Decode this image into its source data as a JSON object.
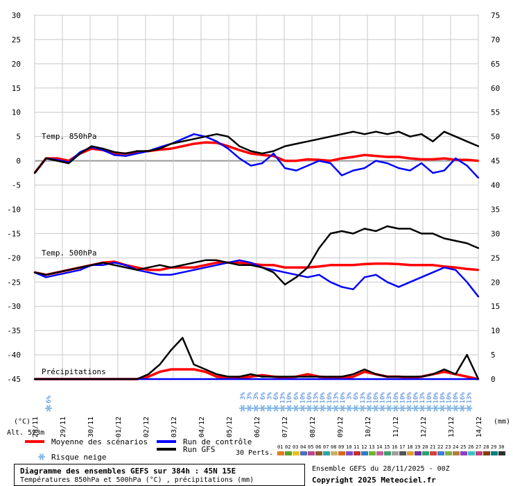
{
  "chart_data": {
    "type": "line",
    "title": "Diagramme des ensembles GEFS sur 384h : 45N 15E",
    "subtitle": "Températures 850hPa et 500hPa (°C) , précipitations (mm)",
    "left_axis": {
      "unit": "(°C)",
      "ticks": [
        30,
        25,
        20,
        15,
        10,
        5,
        0,
        -5,
        -10,
        -15,
        -20,
        -25,
        -30,
        -35,
        -40,
        -45
      ],
      "range": [
        -45,
        30
      ]
    },
    "right_axis": {
      "unit": "(mm)",
      "ticks": [
        75,
        70,
        65,
        60,
        55,
        50,
        45,
        40,
        35,
        30,
        25,
        20,
        15,
        10,
        5,
        0
      ],
      "range": [
        0,
        75
      ]
    },
    "x_dates": [
      "28/11",
      "29/11",
      "30/11",
      "01/12",
      "02/12",
      "03/12",
      "04/12",
      "05/12",
      "06/12",
      "07/12",
      "08/12",
      "09/12",
      "10/12",
      "11/12",
      "12/12",
      "13/12",
      "14/12"
    ],
    "panels": {
      "t850": "Temp. 850hPa",
      "t500": "Temp. 500hPa",
      "precip": "Précipitations"
    },
    "series": [
      {
        "name": "Moyenne des scénarios",
        "color": "#ff0000",
        "t850": [
          -2.5,
          0.5,
          0.5,
          0,
          1.5,
          2.5,
          2.2,
          1.5,
          1.5,
          1.8,
          2,
          2.3,
          2.5,
          3,
          3.5,
          3.8,
          3.7,
          3,
          2.2,
          1.5,
          1.2,
          1.0,
          0,
          0,
          0.3,
          0.2,
          0,
          0.5,
          0.8,
          1.2,
          1.0,
          0.8,
          0.8,
          0.5,
          0.3,
          0.3,
          0.5,
          0.2,
          0.2,
          0.0
        ],
        "t500": [
          -23,
          -23.5,
          -23,
          -22.5,
          -22,
          -21.5,
          -21,
          -20.8,
          -21.5,
          -22,
          -22.5,
          -22.5,
          -22,
          -22,
          -22,
          -21.5,
          -21,
          -21,
          -21,
          -21.2,
          -21.5,
          -21.5,
          -22,
          -22,
          -22,
          -21.8,
          -21.5,
          -21.5,
          -21.5,
          -21.3,
          -21.2,
          -21.2,
          -21.3,
          -21.5,
          -21.5,
          -21.5,
          -21.8,
          -22,
          -22.3,
          -22.5
        ],
        "precip": [
          0,
          0,
          0,
          0,
          0,
          0,
          0,
          0,
          0,
          0,
          0.5,
          1.5,
          2,
          2,
          2,
          1.5,
          0.5,
          0.3,
          0.2,
          0.5,
          0.8,
          0.5,
          0.3,
          0.5,
          1,
          0.5,
          0.3,
          0.2,
          0.5,
          1.5,
          1,
          0.5,
          0.5,
          0.3,
          0.5,
          1,
          1.5,
          1,
          0.5,
          0
        ]
      },
      {
        "name": "Run de contrôle",
        "color": "#0000ff",
        "t850": [
          -2.5,
          0.5,
          0.2,
          -0.3,
          1.8,
          2.8,
          2.2,
          1.2,
          1.0,
          1.5,
          2.0,
          2.8,
          3.5,
          4.5,
          5.5,
          5.0,
          4.0,
          2.5,
          0.5,
          -1.0,
          -0.5,
          1.5,
          -1.5,
          -2.0,
          -1.0,
          0,
          -0.5,
          -3.0,
          -2.0,
          -1.5,
          0,
          -0.5,
          -1.5,
          -2.0,
          -0.5,
          -2.5,
          -2.0,
          0.5,
          -1.0,
          -3.5
        ],
        "t500": [
          -23,
          -24,
          -23.5,
          -23,
          -22.5,
          -21.5,
          -21.5,
          -21,
          -21.5,
          -22.5,
          -23,
          -23.5,
          -23.5,
          -23,
          -22.5,
          -22,
          -21.5,
          -21,
          -20.5,
          -21,
          -22,
          -22.5,
          -23,
          -23.5,
          -24,
          -23.5,
          -25,
          -26,
          -26.5,
          -24,
          -23.5,
          -25,
          -26,
          -25,
          -24,
          -23,
          -22,
          -22.5,
          -25,
          -28
        ],
        "precip": [
          0,
          0,
          0,
          0,
          0,
          0,
          0,
          0,
          0,
          0,
          0,
          0,
          0,
          0,
          0,
          0,
          0,
          0,
          0,
          0,
          0,
          0,
          0,
          0,
          0,
          0,
          0,
          0,
          0,
          0,
          0,
          0,
          0,
          0,
          0,
          0,
          0,
          0,
          0,
          0
        ]
      },
      {
        "name": "Run GFS",
        "color": "#000000",
        "t850": [
          -2.5,
          0.5,
          0,
          -0.5,
          1.5,
          3.0,
          2.5,
          1.8,
          1.5,
          2.0,
          2.0,
          2.5,
          3.5,
          4.0,
          4.5,
          5.0,
          5.5,
          5.0,
          3.0,
          2.0,
          1.5,
          2.0,
          3.0,
          3.5,
          4.0,
          4.5,
          5.0,
          5.5,
          6.0,
          5.5,
          6.0,
          5.5,
          6.0,
          5.0,
          5.5,
          4.0,
          6.0,
          5.0,
          4.0,
          3.0
        ],
        "t500": [
          -23,
          -23.5,
          -23,
          -22.5,
          -22,
          -21.5,
          -21,
          -21.5,
          -22,
          -22.5,
          -22,
          -21.5,
          -22,
          -21.5,
          -21,
          -20.5,
          -20.5,
          -21,
          -21.5,
          -21.5,
          -22,
          -23,
          -25.5,
          -24,
          -22,
          -18,
          -15,
          -14.5,
          -15,
          -14,
          -14.5,
          -13.5,
          -14,
          -14,
          -15,
          -15,
          -16,
          -16.5,
          -17,
          -18
        ],
        "precip": [
          0,
          0,
          0,
          0,
          0,
          0,
          0,
          0,
          0,
          0,
          1,
          3,
          6,
          8.5,
          3,
          2,
          1,
          0.5,
          0.5,
          1,
          0.5,
          0.5,
          0.5,
          0.5,
          0.5,
          0.5,
          0.5,
          0.5,
          1,
          2,
          1,
          0.5,
          0.5,
          0.5,
          0.5,
          1,
          2,
          1,
          5,
          0
        ]
      }
    ]
  },
  "snow_badges": {
    "first": "6%",
    "row": [
      "3%",
      "3%",
      "3%",
      "6%",
      "3%",
      "6%",
      "13%",
      "10%",
      "6%",
      "10%",
      "10%",
      "13%",
      "10%",
      "10%",
      "13%",
      "10%",
      "3%",
      "6%",
      "13%",
      "10%",
      "10%",
      "10%",
      "13%",
      "10%",
      "10%",
      "10%",
      "10%",
      "13%",
      "10%",
      "10%",
      "10%",
      "10%",
      "10%",
      "16%",
      "13%"
    ]
  },
  "labels": {
    "left_unit": "(°C)",
    "right_unit": "(mm)",
    "alt": "Alt. 523m",
    "snow_risk": "Risque neige",
    "perts": "30 Perts.",
    "run_info": "Ensemble GEFS du 28/11/2025 - 00Z",
    "copyright": "Copyright 2025 Meteociel.fr"
  },
  "legend": {
    "mean": "Moyenne des scénarios",
    "control": "Run de contrôle",
    "gfs": "Run GFS"
  },
  "colors": {
    "mean": "#ff0000",
    "control": "#0000ff",
    "gfs": "#000000",
    "grid": "#c8c8c8",
    "zero_line": "#999999",
    "snow": "#87b9e8"
  },
  "perturbations": {
    "numbers": [
      "01",
      "02",
      "03",
      "04",
      "05",
      "06",
      "07",
      "08",
      "09",
      "10",
      "11",
      "12",
      "13",
      "14",
      "15",
      "16",
      "17",
      "18",
      "19",
      "20",
      "21",
      "22",
      "23",
      "24",
      "25",
      "26",
      "27",
      "28",
      "29",
      "30"
    ],
    "colors": [
      "#e07b26",
      "#5aa02c",
      "#e6c020",
      "#4f6fb5",
      "#b84a8d",
      "#8a5a2b",
      "#2ca6a6",
      "#c9b06a",
      "#d2691e",
      "#7c4ebe",
      "#c22f2f",
      "#2f7fc2",
      "#6fb52f",
      "#c25fa0",
      "#3f9f6f",
      "#a0a0a0",
      "#555555",
      "#e0a030",
      "#7030a0",
      "#30a070",
      "#d04040",
      "#4080d0",
      "#80b040",
      "#b08040",
      "#9040c0",
      "#40c0c0",
      "#c04080",
      "#804000",
      "#008080",
      "#303030"
    ]
  }
}
